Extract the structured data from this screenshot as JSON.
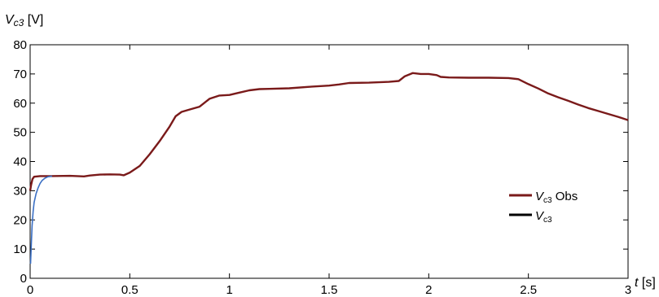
{
  "chart_data": {
    "type": "line",
    "xlim": [
      0,
      3
    ],
    "ylim": [
      0,
      80
    ],
    "x_ticks": [
      0,
      0.5,
      1,
      1.5,
      2,
      2.5,
      3
    ],
    "x_tick_labels": [
      "0",
      "0.5",
      "1",
      "1.5",
      "2",
      "2.5",
      "3"
    ],
    "y_ticks": [
      0,
      10,
      20,
      30,
      40,
      50,
      60,
      70,
      80
    ],
    "y_tick_labels": [
      "0",
      "10",
      "20",
      "30",
      "40",
      "50",
      "60",
      "70",
      "80"
    ],
    "ylabel": {
      "var": "V",
      "sub": "c3",
      "unit": " [V]"
    },
    "xlabel": {
      "var": "t",
      "unit": " [s]"
    },
    "grid": false,
    "legend_position": "right",
    "series": [
      {
        "legend": {
          "var": "V",
          "sub": "c3",
          "suffix": " Obs"
        },
        "color": "#7a1a1a",
        "points": [
          [
            0,
            30
          ],
          [
            0.005,
            32
          ],
          [
            0.012,
            34
          ],
          [
            0.02,
            34.8
          ],
          [
            0.05,
            35.0
          ],
          [
            0.1,
            35.0
          ],
          [
            0.2,
            35.1
          ],
          [
            0.27,
            34.9
          ],
          [
            0.3,
            35.2
          ],
          [
            0.35,
            35.5
          ],
          [
            0.4,
            35.6
          ],
          [
            0.45,
            35.5
          ],
          [
            0.47,
            35.3
          ],
          [
            0.5,
            36.2
          ],
          [
            0.55,
            38.5
          ],
          [
            0.6,
            42.5
          ],
          [
            0.65,
            47.0
          ],
          [
            0.7,
            52.0
          ],
          [
            0.73,
            55.5
          ],
          [
            0.76,
            57.0
          ],
          [
            0.8,
            57.8
          ],
          [
            0.85,
            58.8
          ],
          [
            0.9,
            61.5
          ],
          [
            0.95,
            62.6
          ],
          [
            1.0,
            62.8
          ],
          [
            1.05,
            63.6
          ],
          [
            1.1,
            64.4
          ],
          [
            1.15,
            64.8
          ],
          [
            1.2,
            64.9
          ],
          [
            1.3,
            65.1
          ],
          [
            1.4,
            65.6
          ],
          [
            1.5,
            66.0
          ],
          [
            1.55,
            66.4
          ],
          [
            1.6,
            66.9
          ],
          [
            1.7,
            67.0
          ],
          [
            1.8,
            67.3
          ],
          [
            1.85,
            67.6
          ],
          [
            1.88,
            69.2
          ],
          [
            1.92,
            70.3
          ],
          [
            1.96,
            70.0
          ],
          [
            2.0,
            70.0
          ],
          [
            2.04,
            69.6
          ],
          [
            2.06,
            69.0
          ],
          [
            2.1,
            68.8
          ],
          [
            2.2,
            68.7
          ],
          [
            2.3,
            68.7
          ],
          [
            2.4,
            68.6
          ],
          [
            2.45,
            68.2
          ],
          [
            2.5,
            66.5
          ],
          [
            2.55,
            65.0
          ],
          [
            2.6,
            63.3
          ],
          [
            2.65,
            62.0
          ],
          [
            2.7,
            60.8
          ],
          [
            2.75,
            59.5
          ],
          [
            2.8,
            58.3
          ],
          [
            2.85,
            57.3
          ],
          [
            2.9,
            56.3
          ],
          [
            2.95,
            55.3
          ],
          [
            3.0,
            54.2
          ]
        ]
      },
      {
        "legend": {
          "var": "V",
          "sub": "c3",
          "suffix": ""
        },
        "color": "#000000",
        "legend_only": true,
        "points": []
      },
      {
        "color": "#3a6fc4",
        "points": [
          [
            0.002,
            5
          ],
          [
            0.006,
            12
          ],
          [
            0.01,
            18
          ],
          [
            0.015,
            23
          ],
          [
            0.02,
            26
          ],
          [
            0.03,
            29
          ],
          [
            0.04,
            31
          ],
          [
            0.05,
            32.5
          ],
          [
            0.06,
            33.5
          ],
          [
            0.075,
            34.3
          ],
          [
            0.09,
            34.8
          ],
          [
            0.11,
            35.0
          ]
        ]
      }
    ]
  }
}
